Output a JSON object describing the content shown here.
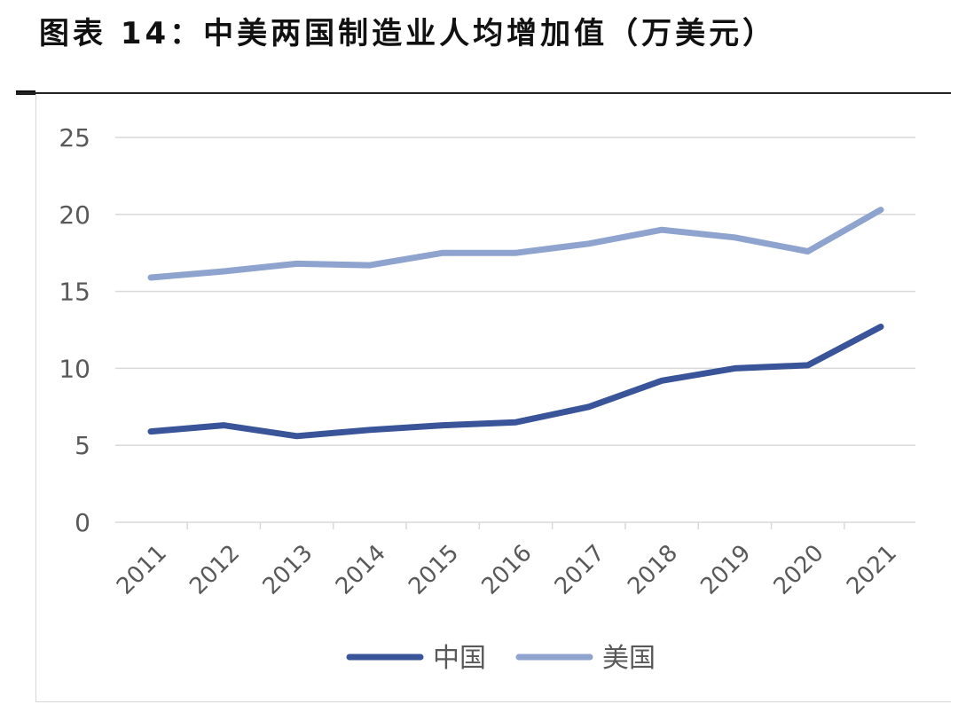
{
  "title": "图表 14：中美两国制造业人均增加值（万美元）",
  "colors": {
    "china": "#3a5499",
    "usa": "#8fa3cf",
    "grid": "#d9d9d9",
    "axis_text": "#595959"
  },
  "chart_data": {
    "type": "line",
    "title": "图表 14：中美两国制造业人均增加值（万美元）",
    "unit": "万美元",
    "x": [
      "2011",
      "2012",
      "2013",
      "2014",
      "2015",
      "2016",
      "2017",
      "2018",
      "2019",
      "2020",
      "2021"
    ],
    "ylim": [
      0,
      25
    ],
    "yticks": [
      "0",
      "5",
      "10",
      "15",
      "20",
      "25"
    ],
    "grid": true,
    "legend_position": "bottom",
    "series": [
      {
        "name": "中国",
        "values": [
          5.9,
          6.3,
          5.6,
          6.0,
          6.3,
          6.5,
          7.5,
          9.2,
          10.0,
          10.2,
          12.7
        ]
      },
      {
        "name": "美国",
        "values": [
          15.9,
          16.3,
          16.8,
          16.7,
          17.5,
          17.5,
          18.1,
          19.0,
          18.5,
          17.6,
          20.3
        ]
      }
    ]
  }
}
